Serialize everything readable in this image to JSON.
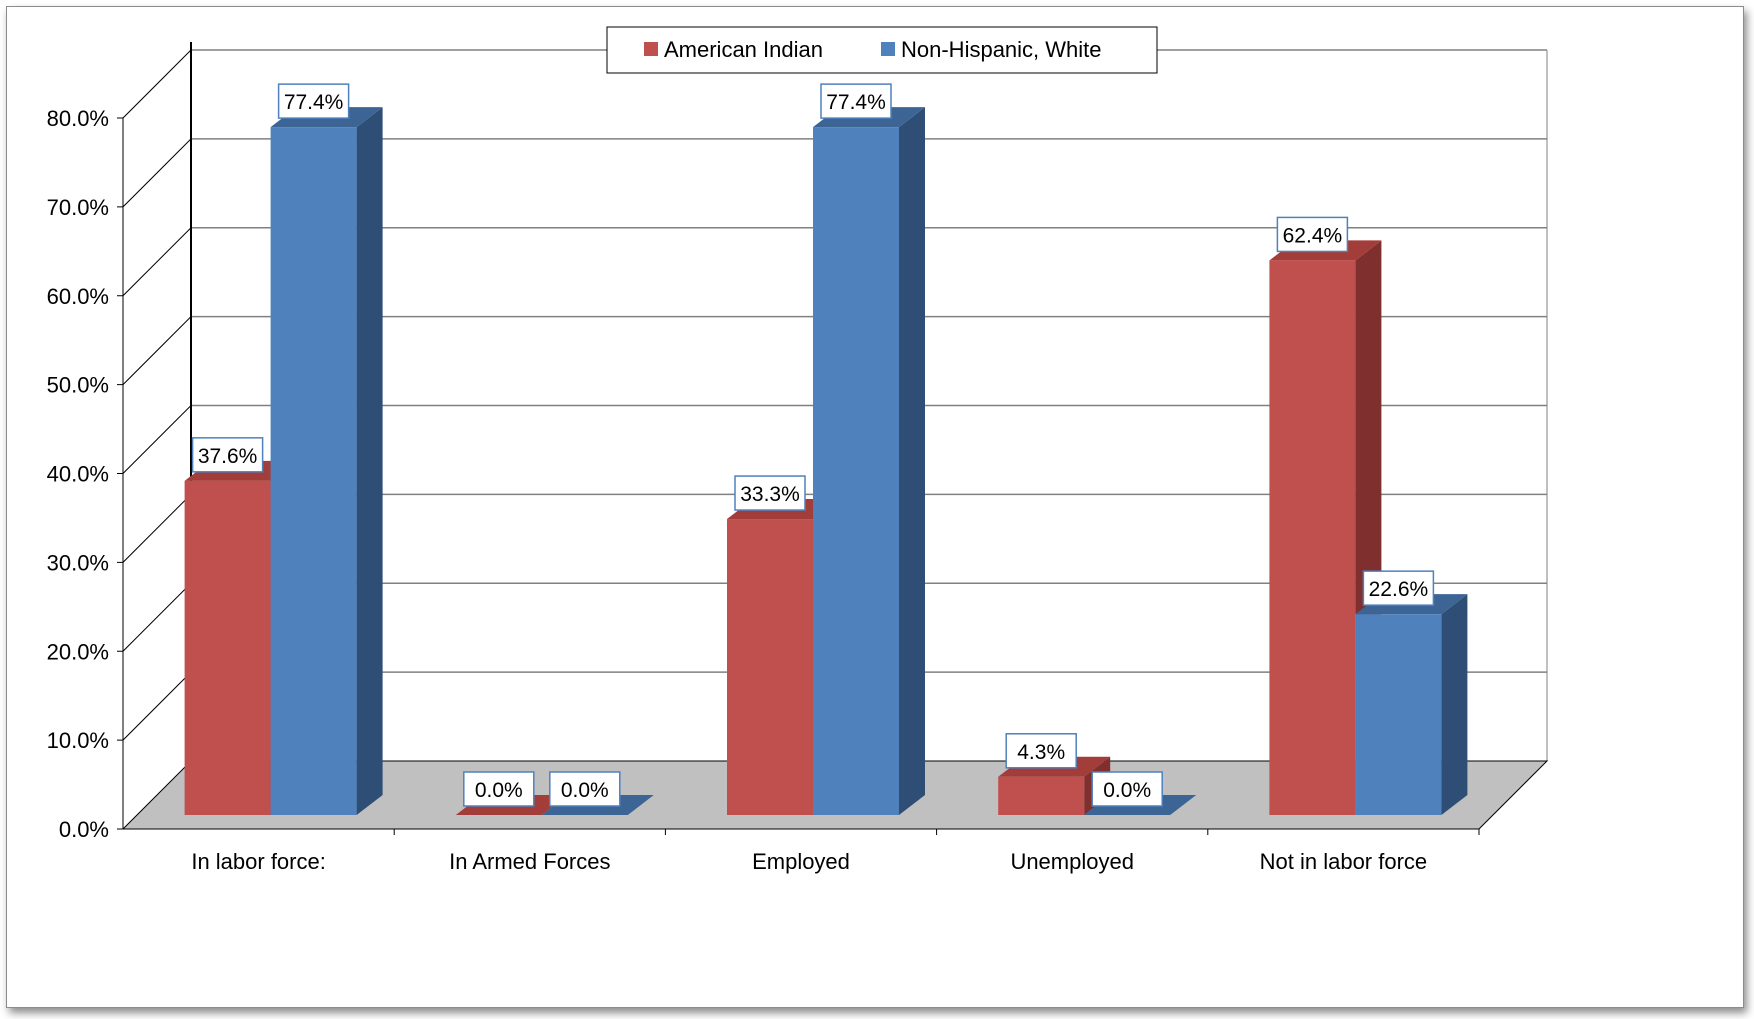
{
  "chart_data": {
    "type": "bar",
    "categories": [
      "In labor force:",
      "In Armed Forces",
      "Employed",
      "Unemployed",
      "Not in labor force"
    ],
    "series": [
      {
        "name": "American Indian",
        "values": [
          37.6,
          0.0,
          33.3,
          4.3,
          62.4
        ],
        "color": "#c0504d",
        "side_color": "#7f2f2d",
        "top_color": "#a33d3a"
      },
      {
        "name": "Non-Hispanic, White",
        "values": [
          77.4,
          0.0,
          77.4,
          0.0,
          22.6
        ],
        "color": "#4f81bd",
        "side_color": "#2f4e75",
        "top_color": "#3c6596"
      }
    ],
    "data_labels": [
      [
        "37.6%",
        "0.0%",
        "33.3%",
        "4.3%",
        "62.4%"
      ],
      [
        "77.4%",
        "0.0%",
        "77.4%",
        "0.0%",
        "22.6%"
      ]
    ],
    "yticks": [
      "0.0%",
      "10.0%",
      "20.0%",
      "30.0%",
      "40.0%",
      "50.0%",
      "60.0%",
      "70.0%",
      "80.0%"
    ],
    "ylim": [
      0,
      80
    ],
    "title": "",
    "xlabel": "",
    "ylabel": "",
    "grid": true,
    "legend_position": "top-center",
    "style": "3d-clustered-column",
    "floor_color": "#c0c0c0"
  }
}
